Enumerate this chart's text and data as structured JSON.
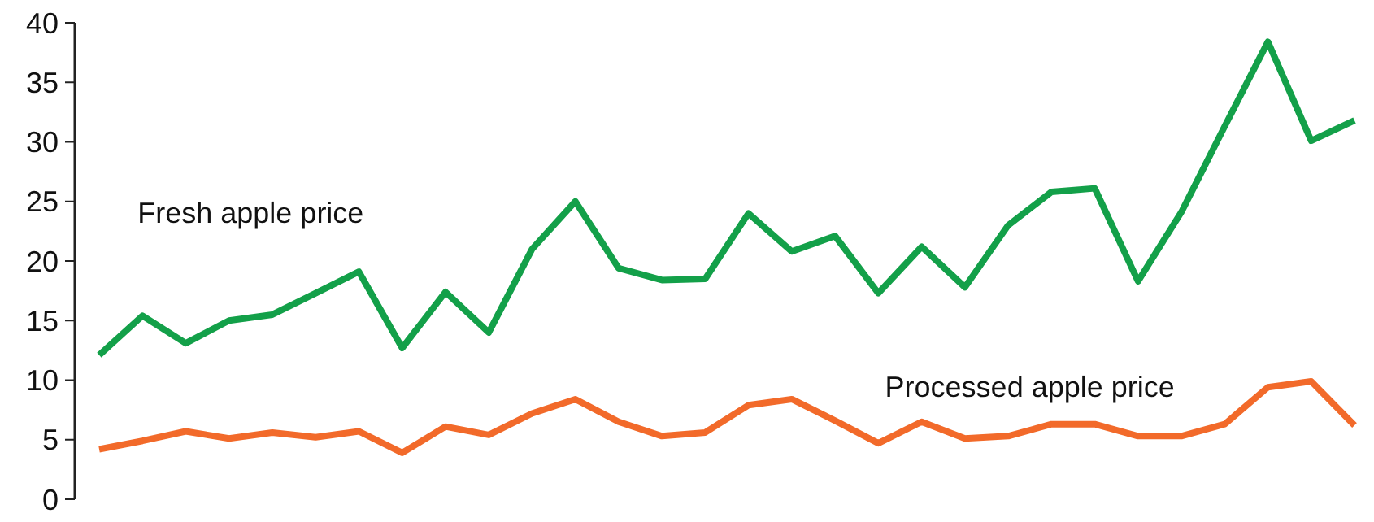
{
  "chart_data": {
    "type": "line",
    "categories": [
      null,
      null,
      null,
      null,
      null,
      null,
      null,
      null,
      null,
      null,
      null,
      null,
      null,
      null,
      null,
      null,
      null,
      null,
      null,
      null,
      null,
      null,
      null,
      null,
      null,
      null,
      null,
      null,
      null,
      null
    ],
    "series": [
      {
        "name": "Fresh apple price",
        "color": "#13a049",
        "values": [
          12.1,
          15.4,
          13.1,
          15.0,
          15.5,
          17.3,
          19.1,
          12.7,
          17.4,
          14.0,
          21.0,
          25.0,
          19.4,
          18.4,
          18.5,
          24.0,
          20.8,
          22.1,
          17.3,
          21.2,
          17.8,
          23.0,
          25.8,
          26.1,
          18.3,
          24.1,
          31.3,
          38.4,
          30.1,
          31.8
        ]
      },
      {
        "name": "Processed apple price",
        "color": "#f26a2a",
        "values": [
          4.2,
          4.9,
          5.7,
          5.1,
          5.6,
          5.2,
          5.7,
          3.9,
          6.1,
          5.4,
          7.2,
          8.4,
          6.5,
          5.3,
          5.6,
          7.9,
          8.4,
          6.6,
          4.7,
          6.5,
          5.1,
          5.3,
          6.3,
          6.3,
          5.3,
          5.3,
          6.3,
          9.4,
          9.9,
          6.2
        ]
      }
    ],
    "ylim": [
      0,
      40
    ],
    "yticks": [
      0,
      5,
      10,
      15,
      20,
      25,
      30,
      35,
      40
    ],
    "grid": false,
    "marker": "none",
    "line_style": "solid",
    "tick_labels": "y"
  }
}
